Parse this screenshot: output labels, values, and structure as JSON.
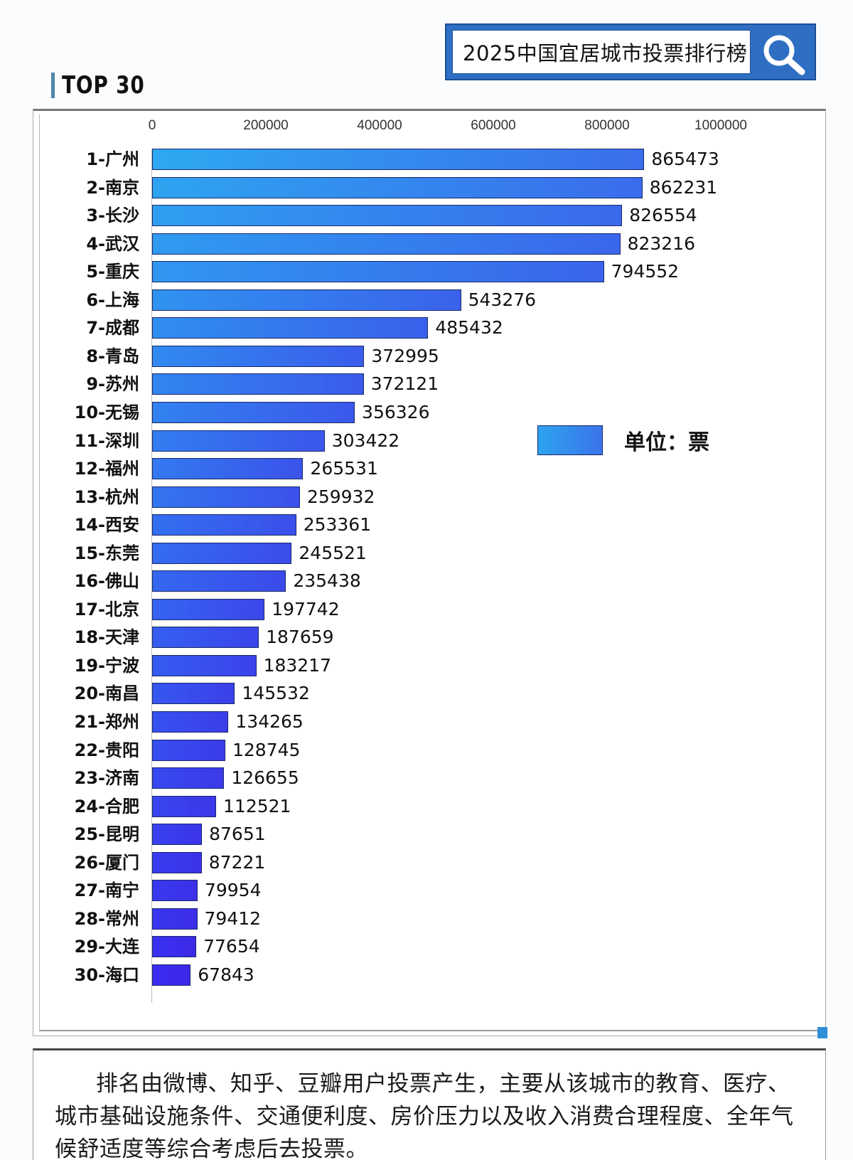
{
  "header": {
    "search_title": "2025中国宜居城市投票排行榜",
    "search_icon": "magnifier-icon",
    "section_title": "TOP 30"
  },
  "legend": {
    "label": "单位：票"
  },
  "colors": {
    "bar_top": "#2ea3ef",
    "bar_bottom": "#3a2cf0",
    "search_box": "#2e6fc4",
    "title_accent": "#4d86a8"
  },
  "axis": {
    "ticks": [
      "0",
      "200000",
      "400000",
      "600000",
      "800000",
      "1000000"
    ]
  },
  "note": {
    "text": "排名由微博、知乎、豆瓣用户投票产生，主要从该城市的教育、医疗、城市基础设施条件、交通便利度、房价压力以及收入消费合理程度、全年气候舒适度等综合考虑后去投票。"
  },
  "chart_data": {
    "type": "bar",
    "orientation": "horizontal",
    "title": "2025中国宜居城市投票排行榜",
    "subtitle": "TOP 30",
    "xlabel": "",
    "ylabel": "",
    "unit": "票",
    "legend": [
      "单位：票"
    ],
    "xlim": [
      0,
      1000000
    ],
    "x_ticks": [
      0,
      200000,
      400000,
      600000,
      800000,
      1000000
    ],
    "grid": false,
    "categories": [
      "1-广州",
      "2-南京",
      "3-长沙",
      "4-武汉",
      "5-重庆",
      "6-上海",
      "7-成都",
      "8-青岛",
      "9-苏州",
      "10-无锡",
      "11-深圳",
      "12-福州",
      "13-杭州",
      "14-西安",
      "15-东莞",
      "16-佛山",
      "17-北京",
      "18-天津",
      "19-宁波",
      "20-南昌",
      "21-郑州",
      "22-贵阳",
      "23-济南",
      "24-合肥",
      "25-昆明",
      "26-厦门",
      "27-南宁",
      "28-常州",
      "29-大连",
      "30-海口"
    ],
    "values": [
      865473,
      862231,
      826554,
      823216,
      794552,
      543276,
      485432,
      372995,
      372121,
      356326,
      303422,
      265531,
      259932,
      253361,
      245521,
      235438,
      197742,
      187659,
      183217,
      145532,
      134265,
      128745,
      126655,
      112521,
      87651,
      87221,
      79954,
      79412,
      77654,
      67843
    ]
  }
}
